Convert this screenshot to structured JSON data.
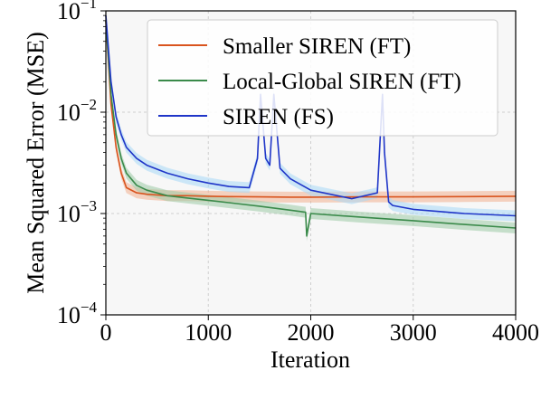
{
  "chart_data": {
    "type": "line",
    "title": "",
    "xlabel": "Iteration",
    "ylabel": "Mean Squared Error (MSE)",
    "xlim": [
      0,
      4000
    ],
    "ylim": [
      0.0001,
      0.1
    ],
    "yscale": "log",
    "grid": true,
    "legend_position": "top-right",
    "x_ticks": [
      {
        "value": 0,
        "label": "0"
      },
      {
        "value": 1000,
        "label": "1000"
      },
      {
        "value": 2000,
        "label": "2000"
      },
      {
        "value": 3000,
        "label": "3000"
      },
      {
        "value": 4000,
        "label": "4000"
      }
    ],
    "y_ticks": [
      {
        "value": 0.0001,
        "base": "10",
        "exp": "−4"
      },
      {
        "value": 0.001,
        "base": "10",
        "exp": "−3"
      },
      {
        "value": 0.01,
        "base": "10",
        "exp": "−2"
      },
      {
        "value": 0.1,
        "base": "10",
        "exp": "−1"
      }
    ],
    "series": [
      {
        "name": "Smaller SIREN (FT)",
        "color": "#d9541e",
        "band_color": "#f3b08f",
        "x": [
          0,
          50,
          100,
          150,
          200,
          300,
          400,
          600,
          800,
          1000,
          1200,
          1500,
          1800,
          2000,
          2500,
          3000,
          3500,
          4000
        ],
        "y": [
          0.08,
          0.012,
          0.0045,
          0.0025,
          0.0018,
          0.0016,
          0.00155,
          0.0015,
          0.0015,
          0.00148,
          0.00147,
          0.00146,
          0.00145,
          0.00145,
          0.00146,
          0.00146,
          0.00147,
          0.00148
        ]
      },
      {
        "name": "Local-Global SIREN (FT)",
        "color": "#3a8a4a",
        "band_color": "#9dcaa5",
        "x": [
          0,
          50,
          100,
          150,
          200,
          300,
          400,
          600,
          800,
          1000,
          1200,
          1500,
          1800,
          1950,
          1960,
          2000,
          2500,
          3000,
          3500,
          4000
        ],
        "y": [
          0.08,
          0.015,
          0.006,
          0.0035,
          0.0025,
          0.0019,
          0.0017,
          0.0015,
          0.00142,
          0.00135,
          0.00128,
          0.00118,
          0.00108,
          0.00103,
          0.0006,
          0.001,
          0.00092,
          0.00085,
          0.00078,
          0.00072
        ]
      },
      {
        "name": "SIREN (FS)",
        "color": "#1f35c8",
        "band_color": "#a8d8f8",
        "x": [
          0,
          50,
          100,
          150,
          200,
          300,
          400,
          600,
          800,
          1000,
          1200,
          1400,
          1480,
          1510,
          1560,
          1600,
          1640,
          1700,
          1800,
          2000,
          2400,
          2650,
          2700,
          2720,
          2760,
          2800,
          3000,
          3500,
          4000
        ],
        "y": [
          0.09,
          0.02,
          0.009,
          0.006,
          0.0045,
          0.0035,
          0.003,
          0.0025,
          0.0022,
          0.002,
          0.00185,
          0.0018,
          0.0035,
          0.015,
          0.0035,
          0.003,
          0.015,
          0.0028,
          0.0022,
          0.0017,
          0.0014,
          0.0016,
          0.015,
          0.004,
          0.0013,
          0.0012,
          0.0011,
          0.001,
          0.00095
        ]
      }
    ]
  }
}
